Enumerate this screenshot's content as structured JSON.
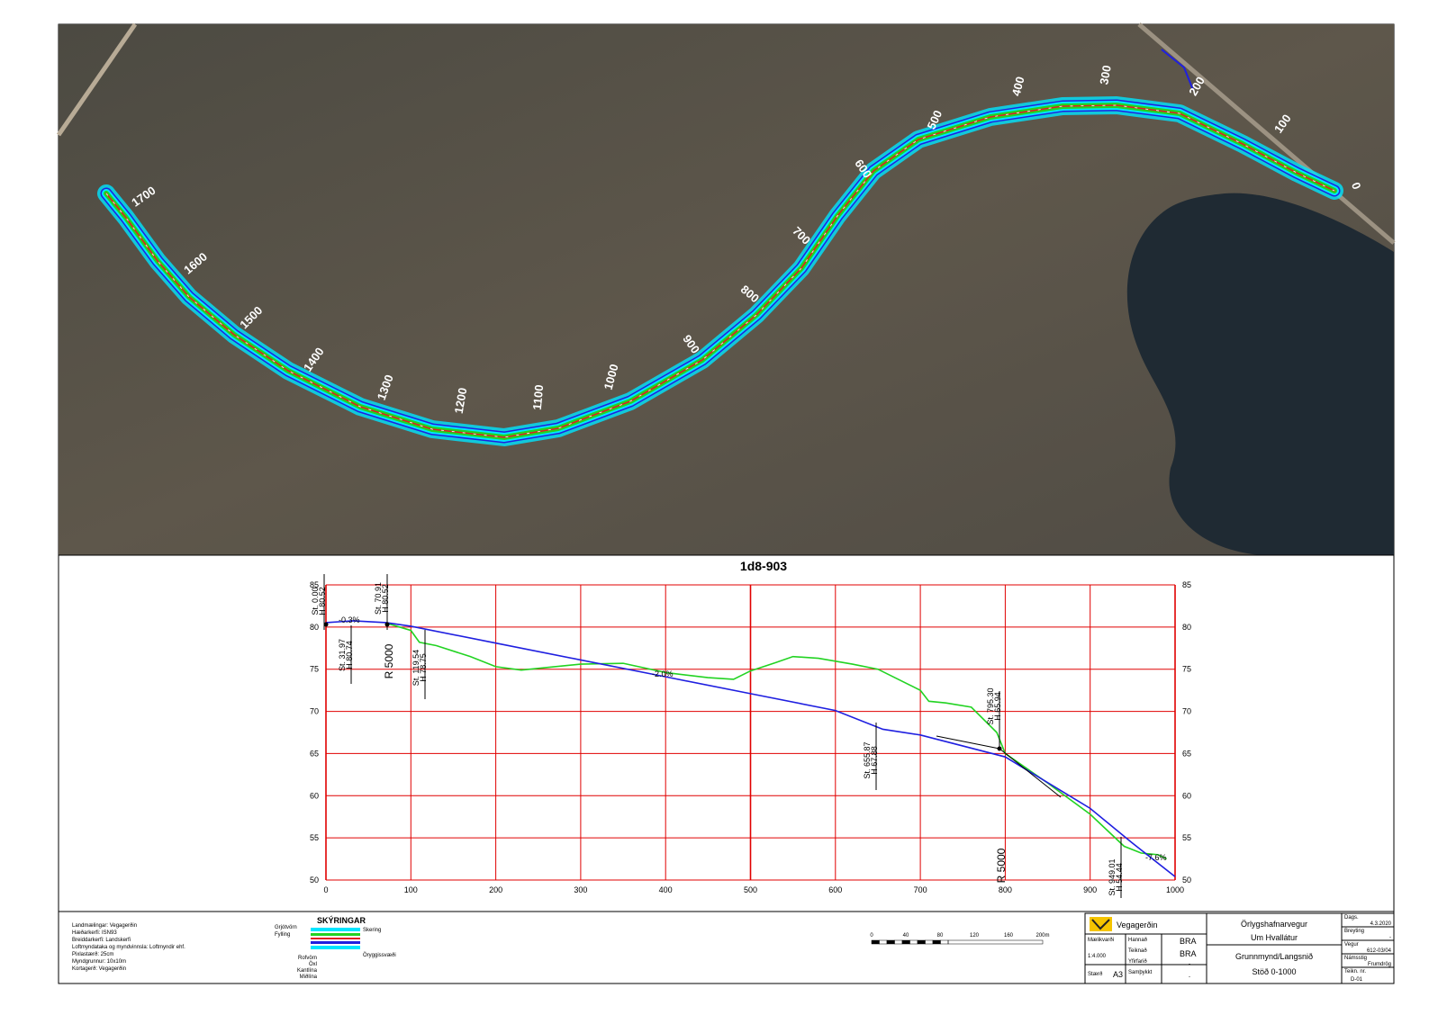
{
  "chart_data": {
    "type": "line",
    "title": "1d8-903",
    "xlim": [
      0,
      1000
    ],
    "ylim": [
      50,
      85
    ],
    "xticks": [
      0,
      100,
      200,
      300,
      400,
      500,
      600,
      700,
      800,
      900,
      1000
    ],
    "yticks": [
      50,
      55,
      60,
      65,
      70,
      75,
      80,
      85
    ],
    "grid": true,
    "series": [
      {
        "color": "#22d322",
        "x": [
          70,
          100,
          110,
          130,
          170,
          200,
          230,
          260,
          300,
          350,
          400,
          450,
          480,
          500,
          530,
          550,
          580,
          620,
          650,
          690,
          700,
          710,
          730,
          760,
          790,
          800,
          850,
          900,
          940,
          960,
          980,
          990
        ],
        "values": [
          80.5,
          79.6,
          78.2,
          77.8,
          76.5,
          75.3,
          74.9,
          75.2,
          75.6,
          75.7,
          74.6,
          74.0,
          73.8,
          74.8,
          75.8,
          76.5,
          76.3,
          75.6,
          75.0,
          73.0,
          72.5,
          71.2,
          71.0,
          70.5,
          67.5,
          65.0,
          61.5,
          57.8,
          54.0,
          53.2,
          53.0,
          52.5
        ]
      },
      {
        "color": "#1f1fe0",
        "x": [
          0,
          31.97,
          70.91,
          100,
          200,
          300,
          400,
          500,
          600,
          655.87,
          700,
          800,
          900,
          949.01,
          1000
        ],
        "values": [
          80.52,
          80.74,
          80.52,
          80.1,
          78.1,
          76.1,
          74.1,
          72.1,
          70.1,
          67.88,
          67.2,
          64.6,
          58.5,
          54.44,
          50.4
        ]
      }
    ],
    "grades": [
      "-0.3%",
      "-2.0%",
      "-7.6%"
    ],
    "curves": [
      "R 5000",
      "R 5000"
    ],
    "stations": [
      [
        "St. 0.00",
        "H 80.52"
      ],
      [
        "St. 70.91",
        "H 80.52"
      ],
      [
        "St. 31.97",
        "H 80.74"
      ],
      [
        "St. 119.54",
        "H 78.75"
      ],
      [
        "St. 655.87",
        "H 67.88"
      ],
      [
        "St. 795.30",
        "H 65.94"
      ],
      [
        "St. 949.01",
        "H 54.44"
      ]
    ]
  },
  "plan": {
    "stations": [
      "0",
      "100",
      "200",
      "300",
      "400",
      "500",
      "600",
      "700",
      "800",
      "900",
      "1000",
      "1100",
      "1200",
      "1300",
      "1400",
      "1500",
      "1600",
      "1700"
    ]
  },
  "notes": [
    "Landmælingar: Vegagerðin",
    "Hæðarkerfi: ISN93",
    "Breiddarkerfi: Landskerfi",
    "Loftmyndataka og myndvinnsla: Loftmyndir ehf.",
    "Pixlastærð: 25cm",
    "Myndgrunnur: 10x10m",
    "Kortagerð: Vegagerðin"
  ],
  "legend": {
    "title": "SKÝRINGAR",
    "items": [
      "Grjótvörn",
      "Fylling",
      "Skering",
      "Rofvörn",
      "Öxl",
      "Kantlína",
      "Miðlína",
      "Öryggissvæði"
    ]
  },
  "scale_bar": {
    "labels": [
      "0",
      "40",
      "80",
      "120",
      "160",
      "200m"
    ]
  },
  "title_block": {
    "org": "Vegagerðin",
    "road": "Örlygshafnarvegur",
    "section": "Um Hvallátur",
    "sheet_title": "Grunnmynd/Langsnið",
    "range": "Stöð 0-1000",
    "scale_label": "Mælikvarði",
    "scale": "1:4.000",
    "size_label": "Stærð",
    "size": "A3",
    "designed_label": "Hannað",
    "designed": "BRA",
    "drawn_label": "Teiknað",
    "drawn": "BRA",
    "checked_label": "Yfirfarið",
    "checked": "-",
    "approved_label": "Samþykkt",
    "approved": "-",
    "date_label": "Dags.",
    "date": "4.3.2020",
    "rev_label": "Breyting",
    "rev": "-",
    "road_label": "Vegur",
    "road_no": "612-03/04",
    "stage_label": "Námsstig",
    "stage": "Frumdrög",
    "drawing_label": "Teikn. nr.",
    "drawing_no": "D-01"
  }
}
